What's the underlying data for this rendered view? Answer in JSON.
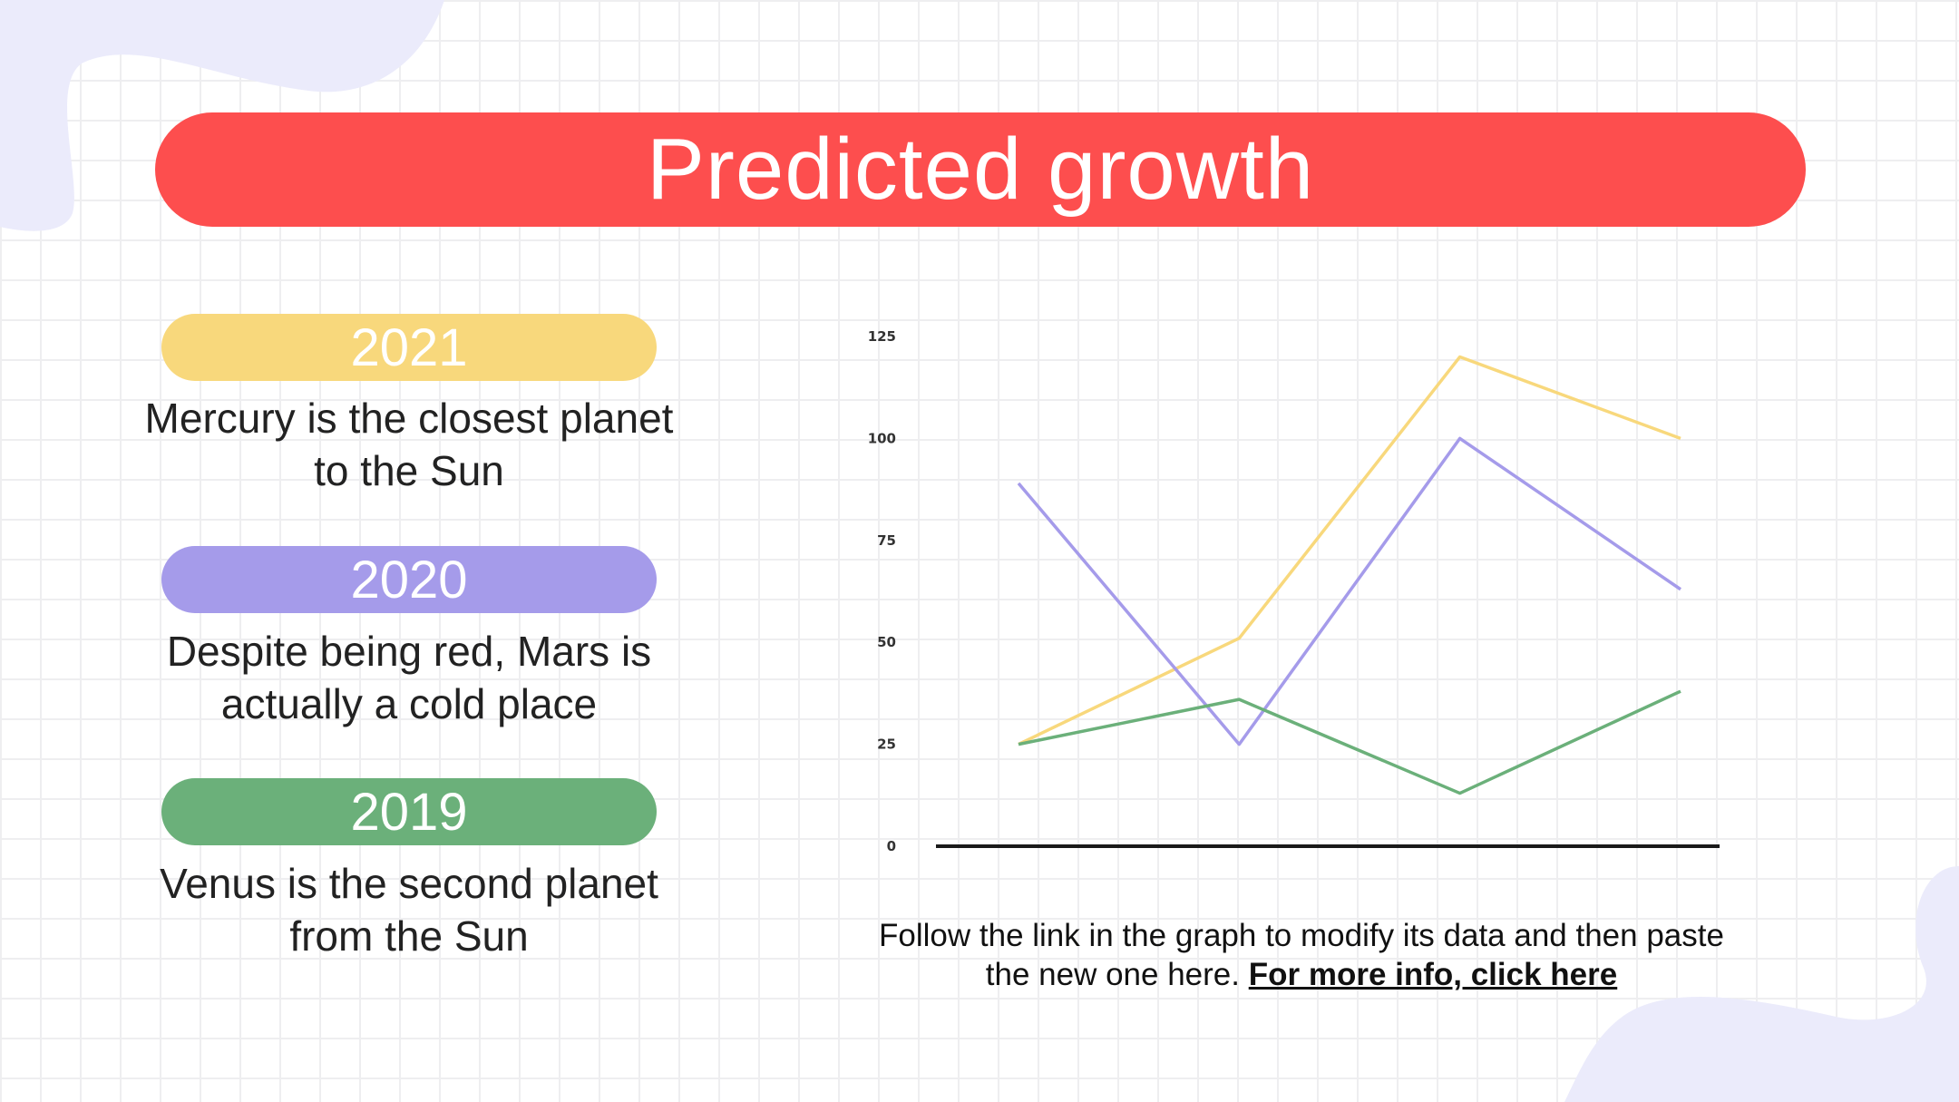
{
  "title": "Predicted growth",
  "colors": {
    "title_bar": "#fd4e4e",
    "blob": "#ebebfb",
    "axis": "#1a1a1a",
    "text": "#222222"
  },
  "entries": [
    {
      "year": "2021",
      "color": "#f8d87c",
      "description": "Mercury is the closest planet to the Sun"
    },
    {
      "year": "2020",
      "color": "#a59bea",
      "description": "Despite being red, Mars is actually a cold place"
    },
    {
      "year": "2019",
      "color": "#6bb07a",
      "description": "Venus is the second planet from the Sun"
    }
  ],
  "chart_data": {
    "type": "line",
    "title": "",
    "xlabel": "",
    "ylabel": "",
    "ylim": [
      0,
      125
    ],
    "yticks": [
      0,
      25,
      50,
      75,
      100,
      125
    ],
    "x": [
      1,
      2,
      3,
      4
    ],
    "grid": false,
    "series": [
      {
        "color": "#f8d87c",
        "values": [
          25,
          51,
          120,
          100
        ]
      },
      {
        "color": "#a59bea",
        "values": [
          89,
          25,
          100,
          63
        ]
      },
      {
        "color": "#6bb07a",
        "values": [
          25,
          36,
          13,
          38
        ]
      }
    ]
  },
  "footnote": {
    "text": "Follow the link in the graph to modify its data and then paste the new one here.",
    "link_text": "For more info, click here"
  }
}
